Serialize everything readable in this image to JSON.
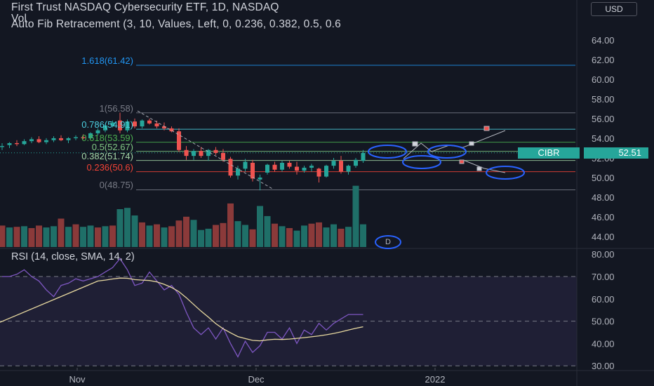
{
  "header": {
    "title": "First Trust NASDAQ Cybersecurity ETF, 1D, NASDAQ",
    "volume_label": "Vol",
    "fib_indicator": "Auto Fib Retracement (3, 10, Values, Left, 0, 0.236, 0.382, 0.5, 0.6"
  },
  "currency": "USD",
  "price_tag": {
    "symbol": "CIBR",
    "value": "52.51"
  },
  "dividend_marker": "D",
  "rsi_label": "RSI (14, close, SMA, 14, 2)",
  "colors": {
    "up": "#26a69a",
    "down": "#ef5350",
    "rsi": "#7e57c2",
    "rsi_ma": "#e8d9a0",
    "background": "#131722",
    "accent": "#2962ff"
  },
  "fib_levels": [
    {
      "label": "1.618(61.42)",
      "price": 61.42,
      "color": "#2196f3"
    },
    {
      "label": "1(56.58)",
      "price": 56.58,
      "color": "#787b86"
    },
    {
      "label": "0.786(54.91)",
      "price": 54.91,
      "color": "#4dd0e1"
    },
    {
      "label": "0.618(53.59)",
      "price": 53.59,
      "color": "#4caf50"
    },
    {
      "label": "0.5(52.67)",
      "price": 52.67,
      "color": "#81c784"
    },
    {
      "label": "0.382(51.74)",
      "price": 51.74,
      "color": "#a5d6a7"
    },
    {
      "label": "0.236(50.6)",
      "price": 50.6,
      "color": "#f44336"
    },
    {
      "label": "0(48.75)",
      "price": 48.75,
      "color": "#787b86"
    }
  ],
  "chart_data": [
    {
      "type": "candlestick",
      "title": "First Trust NASDAQ Cybersecurity ETF, 1D, NASDAQ",
      "y_ticks": [
        "64.00",
        "62.00",
        "60.00",
        "58.00",
        "56.00",
        "54.00",
        "52.00",
        "50.00",
        "48.00",
        "46.00",
        "44.00"
      ],
      "x_ticks": [
        "Nov",
        "Dec",
        "2022"
      ],
      "ylim": [
        43.5,
        65.2
      ],
      "candles": [
        {
          "o": 53.1,
          "h": 53.5,
          "l": 52.8,
          "c": 53.2
        },
        {
          "o": 53.3,
          "h": 53.6,
          "l": 53.0,
          "c": 53.5
        },
        {
          "o": 53.5,
          "h": 53.8,
          "l": 53.2,
          "c": 53.4
        },
        {
          "o": 53.4,
          "h": 53.9,
          "l": 53.3,
          "c": 53.7
        },
        {
          "o": 53.7,
          "h": 54.1,
          "l": 53.5,
          "c": 53.9
        },
        {
          "o": 53.9,
          "h": 54.2,
          "l": 53.5,
          "c": 53.6
        },
        {
          "o": 53.6,
          "h": 54.0,
          "l": 53.4,
          "c": 53.8
        },
        {
          "o": 53.8,
          "h": 54.2,
          "l": 53.6,
          "c": 54.0
        },
        {
          "o": 54.0,
          "h": 54.3,
          "l": 53.7,
          "c": 53.8
        },
        {
          "o": 53.8,
          "h": 54.1,
          "l": 53.5,
          "c": 54.0
        },
        {
          "o": 54.0,
          "h": 54.3,
          "l": 53.8,
          "c": 54.1
        },
        {
          "o": 54.1,
          "h": 54.4,
          "l": 53.9,
          "c": 54.0
        },
        {
          "o": 54.0,
          "h": 54.6,
          "l": 53.9,
          "c": 54.5
        },
        {
          "o": 54.5,
          "h": 55.0,
          "l": 54.3,
          "c": 54.8
        },
        {
          "o": 54.8,
          "h": 55.4,
          "l": 54.6,
          "c": 55.3
        },
        {
          "o": 55.3,
          "h": 55.8,
          "l": 55.1,
          "c": 55.6
        },
        {
          "o": 55.8,
          "h": 56.6,
          "l": 54.5,
          "c": 54.8
        },
        {
          "o": 54.8,
          "h": 55.9,
          "l": 54.6,
          "c": 55.7
        },
        {
          "o": 55.7,
          "h": 56.0,
          "l": 55.0,
          "c": 55.2
        },
        {
          "o": 55.2,
          "h": 55.9,
          "l": 55.0,
          "c": 55.8
        },
        {
          "o": 55.8,
          "h": 56.0,
          "l": 55.4,
          "c": 55.5
        },
        {
          "o": 55.5,
          "h": 55.8,
          "l": 55.0,
          "c": 55.2
        },
        {
          "o": 55.2,
          "h": 55.6,
          "l": 54.8,
          "c": 55.0
        },
        {
          "o": 55.0,
          "h": 55.2,
          "l": 54.6,
          "c": 54.7
        },
        {
          "o": 54.7,
          "h": 55.0,
          "l": 52.6,
          "c": 52.8
        },
        {
          "o": 52.8,
          "h": 53.2,
          "l": 51.8,
          "c": 52.2
        },
        {
          "o": 52.2,
          "h": 52.9,
          "l": 51.8,
          "c": 52.7
        },
        {
          "o": 52.7,
          "h": 53.1,
          "l": 52.0,
          "c": 52.2
        },
        {
          "o": 52.2,
          "h": 52.9,
          "l": 51.7,
          "c": 52.8
        },
        {
          "o": 52.8,
          "h": 53.1,
          "l": 52.3,
          "c": 52.5
        },
        {
          "o": 52.5,
          "h": 52.9,
          "l": 51.6,
          "c": 51.8
        },
        {
          "o": 51.9,
          "h": 52.1,
          "l": 50.0,
          "c": 50.2
        },
        {
          "o": 50.2,
          "h": 51.2,
          "l": 49.8,
          "c": 50.9
        },
        {
          "o": 50.9,
          "h": 51.9,
          "l": 50.6,
          "c": 51.6
        },
        {
          "o": 51.5,
          "h": 51.8,
          "l": 49.6,
          "c": 49.9
        },
        {
          "o": 49.8,
          "h": 50.3,
          "l": 48.7,
          "c": 50.0
        },
        {
          "o": 50.5,
          "h": 51.4,
          "l": 50.3,
          "c": 51.3
        },
        {
          "o": 51.3,
          "h": 51.6,
          "l": 50.6,
          "c": 50.8
        },
        {
          "o": 50.8,
          "h": 51.7,
          "l": 50.6,
          "c": 51.5
        },
        {
          "o": 51.5,
          "h": 51.7,
          "l": 50.9,
          "c": 51.1
        },
        {
          "o": 51.1,
          "h": 51.6,
          "l": 50.3,
          "c": 50.7
        },
        {
          "o": 50.7,
          "h": 51.2,
          "l": 50.5,
          "c": 51.0
        },
        {
          "o": 51.0,
          "h": 51.4,
          "l": 50.6,
          "c": 51.2
        },
        {
          "o": 50.9,
          "h": 51.0,
          "l": 49.5,
          "c": 50.1
        },
        {
          "o": 50.1,
          "h": 51.3,
          "l": 50.0,
          "c": 51.2
        },
        {
          "o": 51.2,
          "h": 52.0,
          "l": 50.9,
          "c": 51.7
        },
        {
          "o": 51.7,
          "h": 52.2,
          "l": 50.4,
          "c": 50.6
        },
        {
          "o": 50.6,
          "h": 51.3,
          "l": 50.3,
          "c": 51.2
        },
        {
          "o": 51.2,
          "h": 52.0,
          "l": 51.0,
          "c": 51.8
        },
        {
          "o": 51.7,
          "h": 52.8,
          "l": 51.5,
          "c": 52.5
        }
      ],
      "volume": [
        {
          "v": 3.4,
          "up": false
        },
        {
          "v": 3.1,
          "up": true
        },
        {
          "v": 3.2,
          "up": false
        },
        {
          "v": 3.3,
          "up": true
        },
        {
          "v": 3.0,
          "up": false
        },
        {
          "v": 3.4,
          "up": false
        },
        {
          "v": 3.1,
          "up": true
        },
        {
          "v": 3.3,
          "up": true
        },
        {
          "v": 4.5,
          "up": false
        },
        {
          "v": 3.2,
          "up": true
        },
        {
          "v": 3.6,
          "up": false
        },
        {
          "v": 3.2,
          "up": true
        },
        {
          "v": 3.4,
          "up": true
        },
        {
          "v": 3.1,
          "up": false
        },
        {
          "v": 3.3,
          "up": true
        },
        {
          "v": 3.4,
          "up": false
        },
        {
          "v": 6.0,
          "up": true
        },
        {
          "v": 6.2,
          "up": true
        },
        {
          "v": 5.0,
          "up": true
        },
        {
          "v": 3.9,
          "up": false
        },
        {
          "v": 3.4,
          "up": true
        },
        {
          "v": 3.6,
          "up": false
        },
        {
          "v": 3.1,
          "up": true
        },
        {
          "v": 3.3,
          "up": false
        },
        {
          "v": 4.2,
          "up": false
        },
        {
          "v": 4.8,
          "up": false
        },
        {
          "v": 4.3,
          "up": true
        },
        {
          "v": 2.7,
          "up": true
        },
        {
          "v": 2.9,
          "up": true
        },
        {
          "v": 3.5,
          "up": false
        },
        {
          "v": 3.8,
          "up": false
        },
        {
          "v": 6.9,
          "up": false
        },
        {
          "v": 4.1,
          "up": true
        },
        {
          "v": 3.5,
          "up": true
        },
        {
          "v": 2.8,
          "up": false
        },
        {
          "v": 6.5,
          "up": true
        },
        {
          "v": 4.9,
          "up": true
        },
        {
          "v": 3.7,
          "up": false
        },
        {
          "v": 3.3,
          "up": true
        },
        {
          "v": 3.0,
          "up": false
        },
        {
          "v": 2.6,
          "up": true
        },
        {
          "v": 3.4,
          "up": true
        },
        {
          "v": 3.7,
          "up": false
        },
        {
          "v": 3.9,
          "up": false
        },
        {
          "v": 3.1,
          "up": true
        },
        {
          "v": 3.6,
          "up": true
        },
        {
          "v": 2.9,
          "up": false
        },
        {
          "v": 3.2,
          "up": true
        },
        {
          "v": 9.7,
          "up": true
        },
        {
          "v": 3.6,
          "up": true
        }
      ]
    },
    {
      "type": "line",
      "title": "RSI (14, close, SMA, 14, 2)",
      "y_ticks": [
        "80.00",
        "70.00",
        "60.00",
        "50.00",
        "40.00",
        "30.00"
      ],
      "ylim": [
        28.5,
        81.0
      ],
      "bands": [
        30,
        50,
        70
      ],
      "series": [
        {
          "name": "RSI",
          "values": [
            70,
            70,
            71,
            73,
            70,
            68,
            64,
            61,
            66,
            67,
            69,
            68,
            69,
            70,
            72,
            74,
            78,
            73,
            66,
            67,
            72,
            68,
            64,
            66,
            62,
            54,
            47,
            44,
            47,
            42,
            47,
            40,
            34,
            41,
            36,
            39,
            45,
            45,
            42,
            47,
            40,
            46,
            44,
            49,
            46,
            49,
            51,
            53,
            53,
            53
          ]
        },
        {
          "name": "RSI-based MA",
          "values": [
            null,
            null,
            null,
            null,
            null,
            null,
            null,
            null,
            null,
            null,
            null,
            null,
            null,
            68.0,
            68.4,
            68.9,
            69.3,
            69.2,
            68.6,
            68.4,
            68.2,
            67.6,
            66.5,
            65.1,
            63.2,
            60.5,
            57.5,
            54.5,
            51.8,
            48.9,
            46.6,
            44.8,
            43.1,
            42.2,
            41.4,
            41.2,
            41.6,
            41.9,
            41.8,
            42.0,
            42.3,
            42.6,
            43.0,
            43.4,
            43.9,
            44.5,
            45.2,
            46.0,
            46.8,
            47.5
          ]
        }
      ]
    }
  ]
}
